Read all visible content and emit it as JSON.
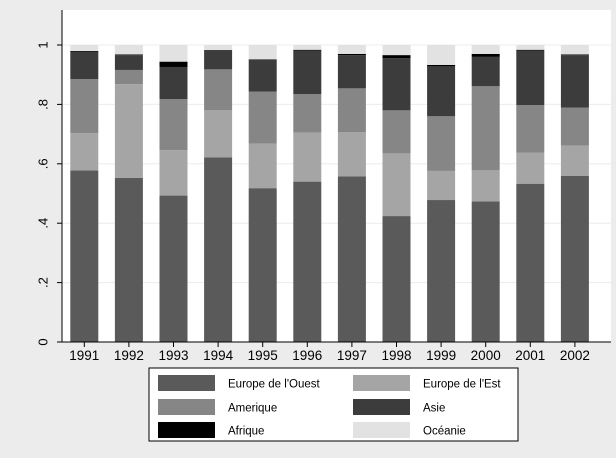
{
  "chart_data": {
    "type": "bar",
    "stacked": true,
    "categories": [
      "1991",
      "1992",
      "1993",
      "1994",
      "1995",
      "1996",
      "1997",
      "1998",
      "1999",
      "2000",
      "2001",
      "2002"
    ],
    "ylim": [
      0,
      1
    ],
    "yticks": [
      {
        "value": 0,
        "label": "0"
      },
      {
        "value": 0.2,
        "label": ".2"
      },
      {
        "value": 0.4,
        "label": ".4"
      },
      {
        "value": 0.6,
        "label": ".6"
      },
      {
        "value": 0.8,
        "label": ".8"
      },
      {
        "value": 1,
        "label": "1"
      }
    ],
    "grid": true,
    "legend_position": "bottom",
    "series": [
      {
        "name": "Europe de l'Ouest",
        "color": "#5a5a5a",
        "values": [
          0.578,
          0.553,
          0.493,
          0.622,
          0.518,
          0.54,
          0.558,
          0.424,
          0.478,
          0.473,
          0.533,
          0.559
        ]
      },
      {
        "name": "Europe de l'Est",
        "color": "#a5a5a5",
        "values": [
          0.125,
          0.315,
          0.153,
          0.158,
          0.15,
          0.165,
          0.148,
          0.211,
          0.098,
          0.105,
          0.105,
          0.102
        ]
      },
      {
        "name": "Amerique",
        "color": "#868686",
        "values": [
          0.182,
          0.048,
          0.172,
          0.138,
          0.175,
          0.13,
          0.148,
          0.145,
          0.184,
          0.283,
          0.16,
          0.128
        ]
      },
      {
        "name": "Asie",
        "color": "#3c3c3c",
        "values": [
          0.092,
          0.05,
          0.108,
          0.063,
          0.107,
          0.146,
          0.112,
          0.176,
          0.168,
          0.099,
          0.183,
          0.177
        ]
      },
      {
        "name": "Afrique",
        "color": "#000000",
        "values": [
          0.003,
          0.002,
          0.018,
          0.002,
          0.002,
          0.003,
          0.004,
          0.01,
          0.005,
          0.01,
          0.003,
          0.002
        ]
      },
      {
        "name": "Océanie",
        "color": "#e2e2e2",
        "values": [
          0.02,
          0.032,
          0.056,
          0.017,
          0.048,
          0.016,
          0.03,
          0.034,
          0.067,
          0.03,
          0.016,
          0.032
        ]
      }
    ]
  },
  "colors": {
    "panel_background": "#ececec",
    "plot_background": "#ffffff",
    "grid": "#ececec",
    "axis": "#000000"
  }
}
